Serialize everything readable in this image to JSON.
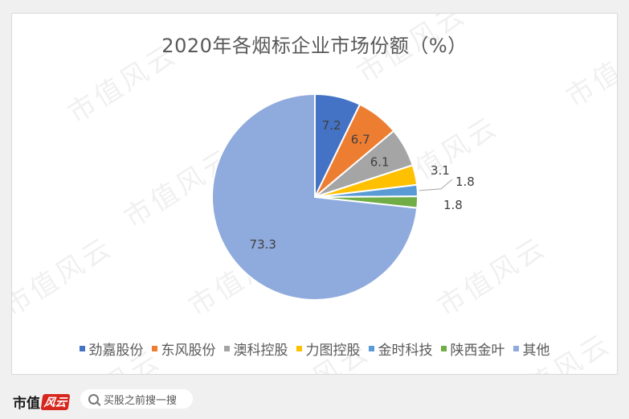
{
  "watermark_text": "市值风云",
  "chart_data": {
    "type": "pie",
    "title": "2020年各烟标企业市场份额（%）",
    "slices": [
      {
        "label": "劲嘉股份",
        "value": 7.2,
        "color": "#4472c4",
        "label_text": "7.2"
      },
      {
        "label": "东风股份",
        "value": 6.7,
        "color": "#ed7d31",
        "label_text": "6.7"
      },
      {
        "label": "澳科控股",
        "value": 6.1,
        "color": "#a5a5a5",
        "label_text": "6.1"
      },
      {
        "label": "力图控股",
        "value": 3.1,
        "color": "#ffc000",
        "label_text": "3.1"
      },
      {
        "label": "金时科技",
        "value": 1.8,
        "color": "#5b9bd5",
        "label_text": "1.8"
      },
      {
        "label": "陕西金叶",
        "value": 1.8,
        "color": "#70ad47",
        "label_text": "1.8"
      },
      {
        "label": "其他",
        "value": 73.3,
        "color": "#8faadc",
        "label_text": "73.3"
      }
    ],
    "legend_position": "bottom"
  },
  "footer": {
    "brand_main": "市值",
    "brand_accent": "风云",
    "search_placeholder": "买股之前搜一搜"
  }
}
